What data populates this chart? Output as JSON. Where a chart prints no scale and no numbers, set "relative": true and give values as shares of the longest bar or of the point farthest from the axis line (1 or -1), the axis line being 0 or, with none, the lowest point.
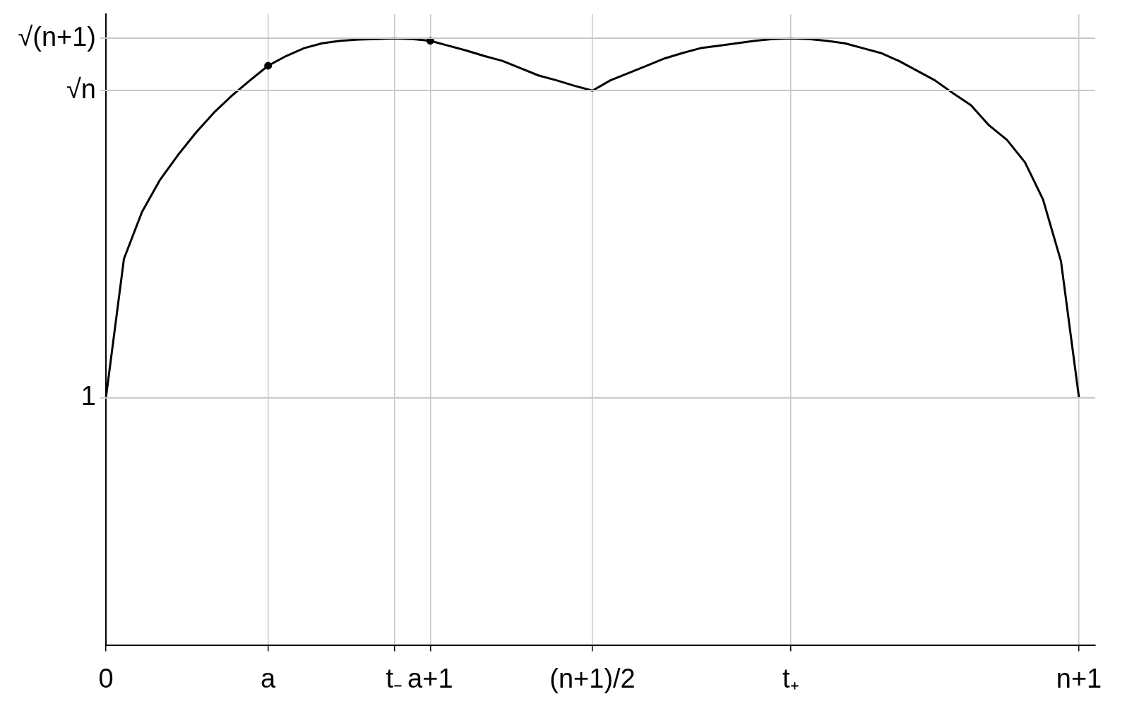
{
  "chart_data": {
    "type": "line",
    "relative": true,
    "categories": [
      "0",
      null,
      null,
      null,
      null,
      null,
      null,
      null,
      null,
      "a",
      null,
      null,
      null,
      null,
      null,
      null,
      "t₋",
      null,
      "a+1",
      null,
      null,
      null,
      null,
      null,
      null,
      null,
      null,
      "(n+1)/2",
      null,
      null,
      null,
      null,
      null,
      null,
      null,
      null,
      null,
      null,
      "t₊",
      null,
      null,
      null,
      null,
      null,
      null,
      null,
      null,
      null,
      null,
      null,
      null,
      null,
      null,
      null,
      "n+1"
    ],
    "series": [
      {
        "color": "#000000",
        "marker": "none",
        "values": [
          0.408,
          0.637,
          0.714,
          0.767,
          0.808,
          0.845,
          0.878,
          0.906,
          0.931,
          0.955,
          0.971,
          0.984,
          0.992,
          0.996,
          0.998,
          0.999,
          1,
          0.999,
          0.996,
          0.988,
          0.98,
          0.971,
          0.963,
          0.951,
          0.939,
          0.931,
          0.922,
          0.914,
          0.931,
          0.943,
          0.955,
          0.967,
          0.976,
          0.984,
          0.988,
          0.992,
          0.996,
          0.999,
          1,
          0.999,
          0.996,
          0.992,
          0.984,
          0.976,
          0.963,
          0.947,
          0.931,
          0.91,
          0.89,
          0.857,
          0.833,
          0.796,
          0.735,
          0.633,
          0.408
        ]
      },
      {
        "type": "scatter",
        "color": "#000000",
        "marker": "circle",
        "x": [
          "a",
          "a+1"
        ],
        "values": [
          0.955,
          0.996
        ]
      }
    ],
    "ref_lines": [
      {
        "axis": "y",
        "value": 0.408,
        "color": "#c8c8c8"
      },
      {
        "axis": "y",
        "value": 0.914,
        "color": "#c8c8c8"
      },
      {
        "axis": "y",
        "value": 1,
        "color": "#c8c8c8"
      }
    ],
    "annotations": [
      "1",
      "√n",
      "√(n+1)"
    ],
    "grid": "x"
  }
}
